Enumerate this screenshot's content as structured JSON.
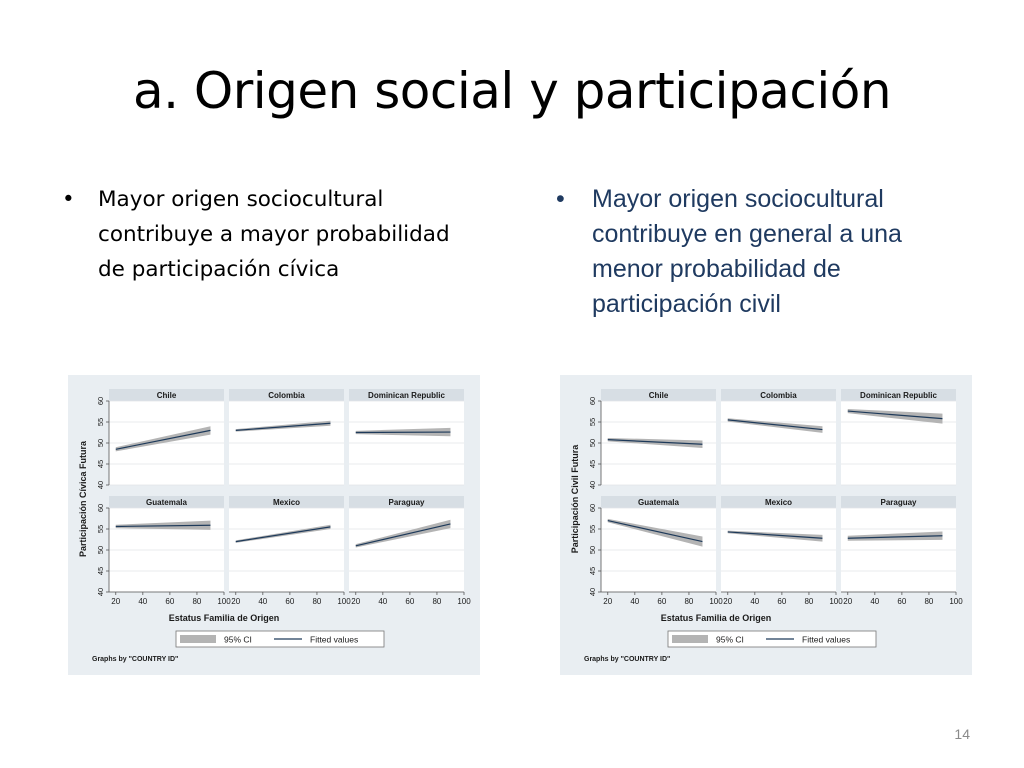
{
  "slide": {
    "title": "a. Origen social y participación",
    "bullet_left": "Mayor origen sociocultural contribuye a mayor probabilidad de participación cívica",
    "bullet_right": "Mayor origen sociocultural contribuye en general a una menor probabilidad de participación civil",
    "page_number": "14"
  },
  "colors": {
    "frame": "#e9eef2",
    "plot_bg": "#ffffff",
    "grid": "#e2e5e8",
    "strip": "#d7dee4",
    "ci": "#b4b4b4",
    "line": "#1e3a5a",
    "text": "#1a1a1a"
  },
  "chart_data": [
    {
      "type": "line",
      "xlabel": "Estatus Familia de Origen",
      "ylabel": "Participación Cívica Futura",
      "ylim": [
        40,
        60
      ],
      "yticks": [
        40,
        45,
        50,
        55,
        60
      ],
      "xlim": [
        15,
        100
      ],
      "xticks": [
        20,
        40,
        60,
        80,
        100
      ],
      "grid": true,
      "legend": {
        "position": "bottom",
        "entries": [
          "95% CI",
          "Fitted values"
        ]
      },
      "note": "Graphs by \"COUNTRY ID\"",
      "panels": [
        {
          "name": "Chile",
          "x": [
            20,
            90
          ],
          "fit": [
            48.5,
            53.0
          ],
          "ci_low": [
            48.0,
            52.0
          ],
          "ci_high": [
            49.0,
            54.0
          ]
        },
        {
          "name": "Colombia",
          "x": [
            20,
            90
          ],
          "fit": [
            53.0,
            54.7
          ],
          "ci_low": [
            52.7,
            54.1
          ],
          "ci_high": [
            53.3,
            55.3
          ]
        },
        {
          "name": "Dominican Republic",
          "x": [
            20,
            90
          ],
          "fit": [
            52.5,
            52.6
          ],
          "ci_low": [
            52.1,
            51.6
          ],
          "ci_high": [
            52.9,
            53.6
          ]
        },
        {
          "name": "Guatemala",
          "x": [
            20,
            90
          ],
          "fit": [
            55.6,
            55.9
          ],
          "ci_low": [
            55.2,
            54.8
          ],
          "ci_high": [
            56.0,
            57.0
          ]
        },
        {
          "name": "Mexico",
          "x": [
            20,
            90
          ],
          "fit": [
            52.0,
            55.5
          ],
          "ci_low": [
            51.7,
            55.0
          ],
          "ci_high": [
            52.3,
            56.0
          ]
        },
        {
          "name": "Paraguay",
          "x": [
            20,
            90
          ],
          "fit": [
            51.0,
            56.2
          ],
          "ci_low": [
            50.6,
            55.2
          ],
          "ci_high": [
            51.4,
            57.2
          ]
        }
      ]
    },
    {
      "type": "line",
      "xlabel": "Estatus Familia de Origen",
      "ylabel": "Participación Civil Futura",
      "ylim": [
        40,
        60
      ],
      "yticks": [
        40,
        45,
        50,
        55,
        60
      ],
      "xlim": [
        15,
        100
      ],
      "xticks": [
        20,
        40,
        60,
        80,
        100
      ],
      "grid": true,
      "legend": {
        "position": "bottom",
        "entries": [
          "95% CI",
          "Fitted values"
        ]
      },
      "note": "Graphs by \"COUNTRY ID\"",
      "panels": [
        {
          "name": "Chile",
          "x": [
            20,
            90
          ],
          "fit": [
            50.8,
            49.7
          ],
          "ci_low": [
            50.4,
            48.8
          ],
          "ci_high": [
            51.2,
            50.6
          ]
        },
        {
          "name": "Colombia",
          "x": [
            20,
            90
          ],
          "fit": [
            55.5,
            53.2
          ],
          "ci_low": [
            55.1,
            52.4
          ],
          "ci_high": [
            55.9,
            54.0
          ]
        },
        {
          "name": "Dominican Republic",
          "x": [
            20,
            90
          ],
          "fit": [
            57.6,
            55.8
          ],
          "ci_low": [
            57.1,
            54.6
          ],
          "ci_high": [
            58.1,
            57.0
          ]
        },
        {
          "name": "Guatemala",
          "x": [
            20,
            90
          ],
          "fit": [
            57.0,
            52.0
          ],
          "ci_low": [
            56.6,
            50.8
          ],
          "ci_high": [
            57.4,
            53.2
          ]
        },
        {
          "name": "Mexico",
          "x": [
            20,
            90
          ],
          "fit": [
            54.3,
            52.8
          ],
          "ci_low": [
            54.0,
            52.0
          ],
          "ci_high": [
            54.6,
            53.6
          ]
        },
        {
          "name": "Paraguay",
          "x": [
            20,
            90
          ],
          "fit": [
            52.8,
            53.4
          ],
          "ci_low": [
            52.2,
            52.4
          ],
          "ci_high": [
            53.4,
            54.4
          ]
        }
      ]
    }
  ]
}
